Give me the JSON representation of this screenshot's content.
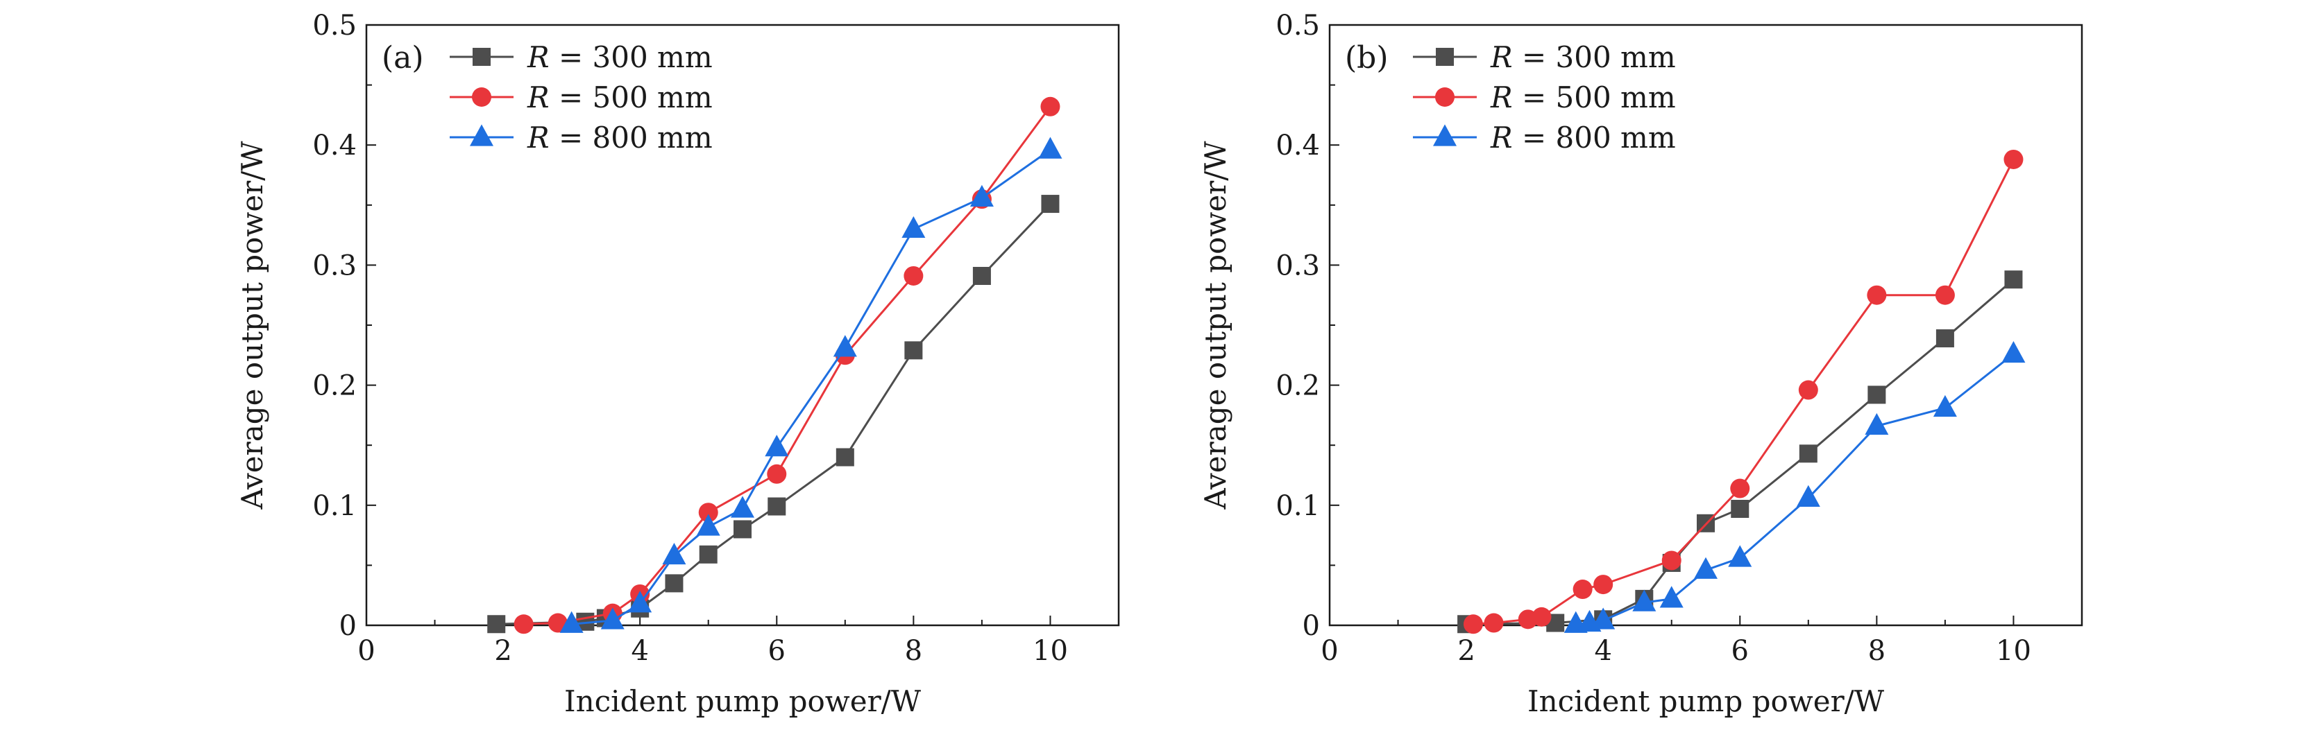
{
  "chart_data": [
    {
      "type": "line",
      "panel_label": "(a)",
      "xlabel": "Incident pump power/W",
      "ylabel": "Average output power/W",
      "xlim": [
        0,
        11
      ],
      "ylim": [
        0,
        0.5
      ],
      "xticks": [
        "0",
        "2",
        "4",
        "6",
        "8",
        "10"
      ],
      "yticks": [
        "0",
        "0.1",
        "0.2",
        "0.3",
        "0.4",
        "0.5"
      ],
      "legend_position": "top-left",
      "series": [
        {
          "name": "R = 300 mm",
          "var": "R",
          "rest": "= 300 mm",
          "color": "#4d4d4d",
          "marker": "square",
          "x": [
            1.9,
            3.2,
            3.5,
            4.0,
            4.5,
            5.0,
            5.5,
            6.0,
            7.0,
            8.0,
            9.0,
            10.0
          ],
          "y": [
            0.001,
            0.003,
            0.006,
            0.014,
            0.035,
            0.059,
            0.08,
            0.099,
            0.14,
            0.229,
            0.291,
            0.351
          ]
        },
        {
          "name": "R = 500 mm",
          "var": "R",
          "rest": "= 500 mm",
          "color": "#e8363b",
          "marker": "circle",
          "x": [
            2.3,
            2.8,
            3.6,
            4.0,
            5.0,
            6.0,
            7.0,
            8.0,
            9.0,
            10.0
          ],
          "y": [
            0.001,
            0.002,
            0.01,
            0.026,
            0.094,
            0.126,
            0.225,
            0.291,
            0.355,
            0.432
          ]
        },
        {
          "name": "R = 800 mm",
          "var": "R",
          "rest": "= 800 mm",
          "color": "#1e6fe0",
          "marker": "triangle",
          "x": [
            3.0,
            3.6,
            4.0,
            4.5,
            5.0,
            5.5,
            6.0,
            7.0,
            8.0,
            9.0,
            10.0
          ],
          "y": [
            0.001,
            0.004,
            0.018,
            0.058,
            0.082,
            0.097,
            0.148,
            0.231,
            0.33,
            0.356,
            0.396
          ]
        }
      ]
    },
    {
      "type": "line",
      "panel_label": "(b)",
      "xlabel": "Incident pump power/W",
      "ylabel": "Average output power/W",
      "xlim": [
        0,
        11
      ],
      "ylim": [
        0,
        0.5
      ],
      "xticks": [
        "0",
        "2",
        "4",
        "6",
        "8",
        "10"
      ],
      "yticks": [
        "0",
        "0.1",
        "0.2",
        "0.3",
        "0.4",
        "0.5"
      ],
      "legend_position": "top-left",
      "series": [
        {
          "name": "R = 300 mm",
          "var": "R",
          "rest": "= 300 mm",
          "color": "#4d4d4d",
          "marker": "square",
          "x": [
            2.0,
            3.3,
            4.0,
            4.6,
            5.0,
            5.5,
            6.0,
            7.0,
            8.0,
            9.0,
            10.0
          ],
          "y": [
            0.001,
            0.002,
            0.005,
            0.022,
            0.052,
            0.085,
            0.097,
            0.143,
            0.192,
            0.239,
            0.288
          ]
        },
        {
          "name": "R = 500 mm",
          "var": "R",
          "rest": "= 500 mm",
          "color": "#e8363b",
          "marker": "circle",
          "x": [
            2.1,
            2.4,
            2.9,
            3.1,
            3.7,
            4.0,
            5.0,
            6.0,
            7.0,
            8.0,
            9.0,
            10.0
          ],
          "y": [
            0.001,
            0.002,
            0.005,
            0.007,
            0.03,
            0.034,
            0.054,
            0.114,
            0.196,
            0.275,
            0.275,
            0.388
          ]
        },
        {
          "name": "R = 800 mm",
          "var": "R",
          "rest": "= 800 mm",
          "color": "#1e6fe0",
          "marker": "triangle",
          "x": [
            3.6,
            3.8,
            4.0,
            4.6,
            5.0,
            5.5,
            6.0,
            7.0,
            8.0,
            9.0,
            10.0
          ],
          "y": [
            0.001,
            0.002,
            0.004,
            0.019,
            0.022,
            0.046,
            0.056,
            0.106,
            0.166,
            0.181,
            0.226
          ]
        }
      ]
    }
  ]
}
